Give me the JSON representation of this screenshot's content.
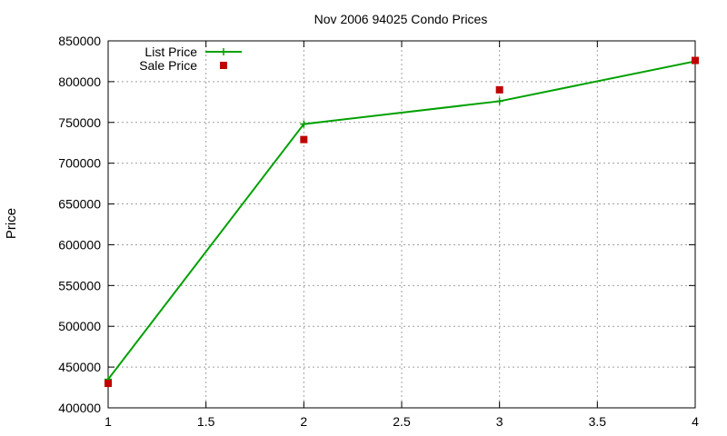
{
  "chart_data": {
    "type": "line",
    "title": "Nov 2006 94025 Condo Prices",
    "xlabel": "",
    "ylabel": "Price",
    "xlim": [
      1,
      4
    ],
    "ylim": [
      400000,
      850000
    ],
    "x_ticks": [
      "1",
      "1.5",
      "2",
      "2.5",
      "3",
      "3.5",
      "4"
    ],
    "y_ticks": [
      "400000",
      "450000",
      "500000",
      "550000",
      "600000",
      "650000",
      "700000",
      "750000",
      "800000",
      "850000"
    ],
    "grid": true,
    "legend_position": "top-left",
    "series": [
      {
        "name": "List Price",
        "style": "line-with-plus-markers",
        "color": "#00a000",
        "x": [
          1,
          2,
          3,
          4
        ],
        "y": [
          435000,
          748000,
          776000,
          825000
        ]
      },
      {
        "name": "Sale Price",
        "style": "square-markers",
        "color": "#c00000",
        "x": [
          1,
          2,
          3,
          4
        ],
        "y": [
          430000,
          729000,
          790000,
          826000
        ]
      }
    ]
  }
}
